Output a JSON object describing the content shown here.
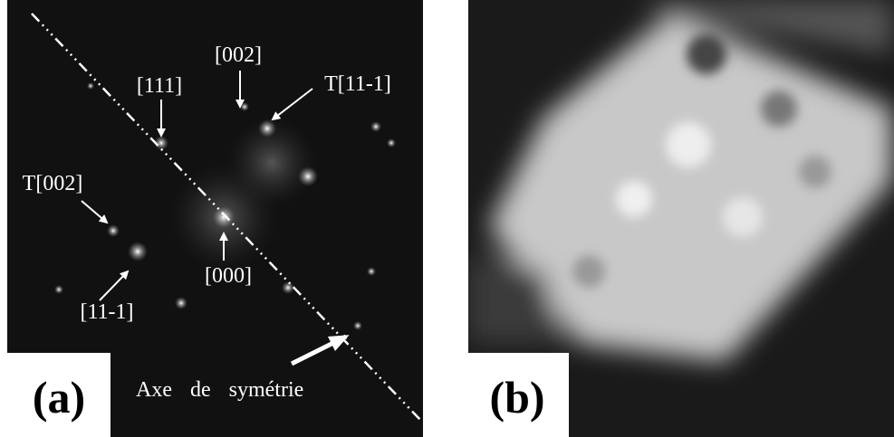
{
  "panel_a": {
    "label": "(a)",
    "axis_caption": "Axe de symétrie",
    "annotations": [
      "[002]",
      "[111]",
      "T[11-1]",
      "T[002]",
      "[000]",
      "[11-1]"
    ]
  },
  "panel_b": {
    "label": "(b)"
  }
}
